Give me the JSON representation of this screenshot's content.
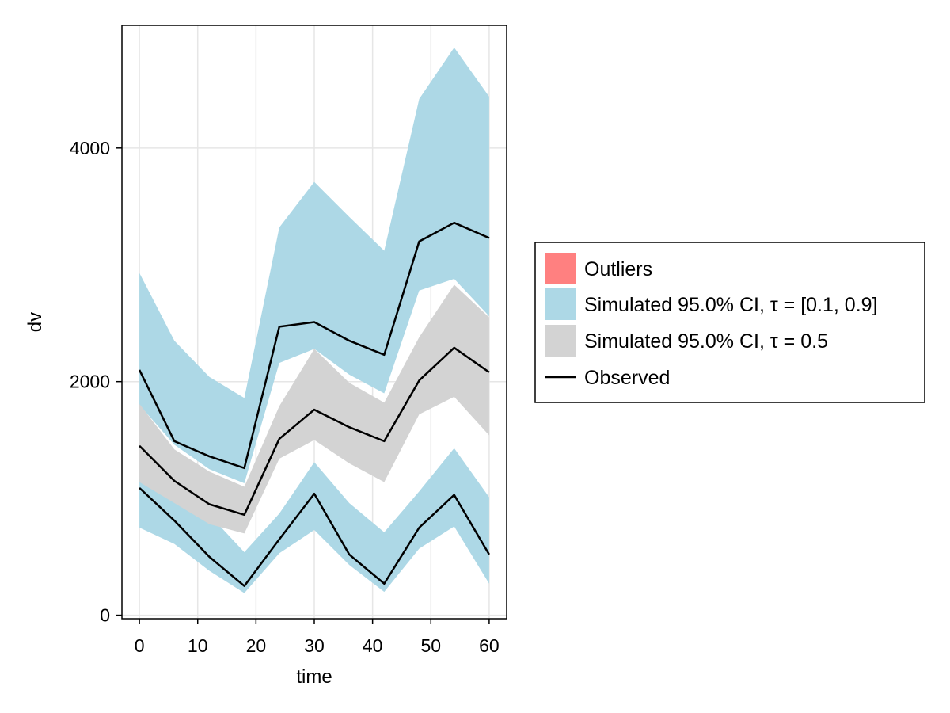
{
  "chart_data": {
    "type": "area",
    "xlabel": "time",
    "ylabel": "dv",
    "xlim": [
      -3,
      63
    ],
    "ylim": [
      -30,
      5050
    ],
    "xticks": [
      0,
      10,
      20,
      30,
      40,
      50,
      60
    ],
    "yticks": [
      0,
      2000,
      4000
    ],
    "grid": true,
    "legend_position": "right",
    "x": [
      0,
      6,
      12,
      18,
      24,
      30,
      36,
      42,
      48,
      54,
      60
    ],
    "colors": {
      "outliers": "#ff8080",
      "ci_outer": "#add8e6",
      "ci_median": "#d3d3d3",
      "observed": "#000000",
      "grid": "#e6e6e6"
    },
    "bands": [
      {
        "name": "Simulated 95.0% CI, τ = [0.1, 0.9]",
        "role": "upper",
        "lower": [
          1800,
          1460,
          1250,
          1130,
          2160,
          2280,
          2060,
          1900,
          2780,
          2880,
          2560
        ],
        "upper": [
          2930,
          2350,
          2040,
          1860,
          3320,
          3710,
          3410,
          3120,
          4420,
          4860,
          4440
        ]
      },
      {
        "name": "Simulated 95.0% CI, τ = [0.1, 0.9]",
        "role": "lower",
        "lower": [
          750,
          610,
          380,
          190,
          530,
          730,
          430,
          200,
          570,
          760,
          270
        ],
        "upper": [
          1170,
          1000,
          860,
          540,
          870,
          1310,
          960,
          710,
          1060,
          1430,
          1010
        ]
      },
      {
        "name": "Simulated 95.0% CI, τ = 0.5",
        "role": "median",
        "lower": [
          1140,
          960,
          780,
          700,
          1340,
          1500,
          1300,
          1140,
          1720,
          1870,
          1540
        ],
        "upper": [
          1810,
          1420,
          1230,
          1100,
          1790,
          2280,
          1990,
          1820,
          2380,
          2830,
          2550
        ]
      }
    ],
    "series": [
      {
        "name": "Observed",
        "role": "q90",
        "values": [
          2100,
          1490,
          1360,
          1260,
          2470,
          2510,
          2350,
          2230,
          3200,
          3360,
          3230
        ]
      },
      {
        "name": "Observed",
        "role": "q50",
        "values": [
          1450,
          1150,
          950,
          860,
          1510,
          1760,
          1610,
          1490,
          2010,
          2290,
          2080
        ]
      },
      {
        "name": "Observed",
        "role": "q10",
        "values": [
          1090,
          810,
          500,
          250,
          650,
          1040,
          520,
          270,
          750,
          1030,
          520
        ]
      }
    ],
    "legend": [
      {
        "label": "Outliers",
        "kind": "patch",
        "color": "#ff8080"
      },
      {
        "label": "Simulated 95.0% CI, τ = [0.1, 0.9]",
        "kind": "patch",
        "color": "#add8e6"
      },
      {
        "label": "Simulated 95.0% CI, τ = 0.5",
        "kind": "patch",
        "color": "#d3d3d3"
      },
      {
        "label": "Observed",
        "kind": "line",
        "color": "#000000"
      }
    ]
  }
}
